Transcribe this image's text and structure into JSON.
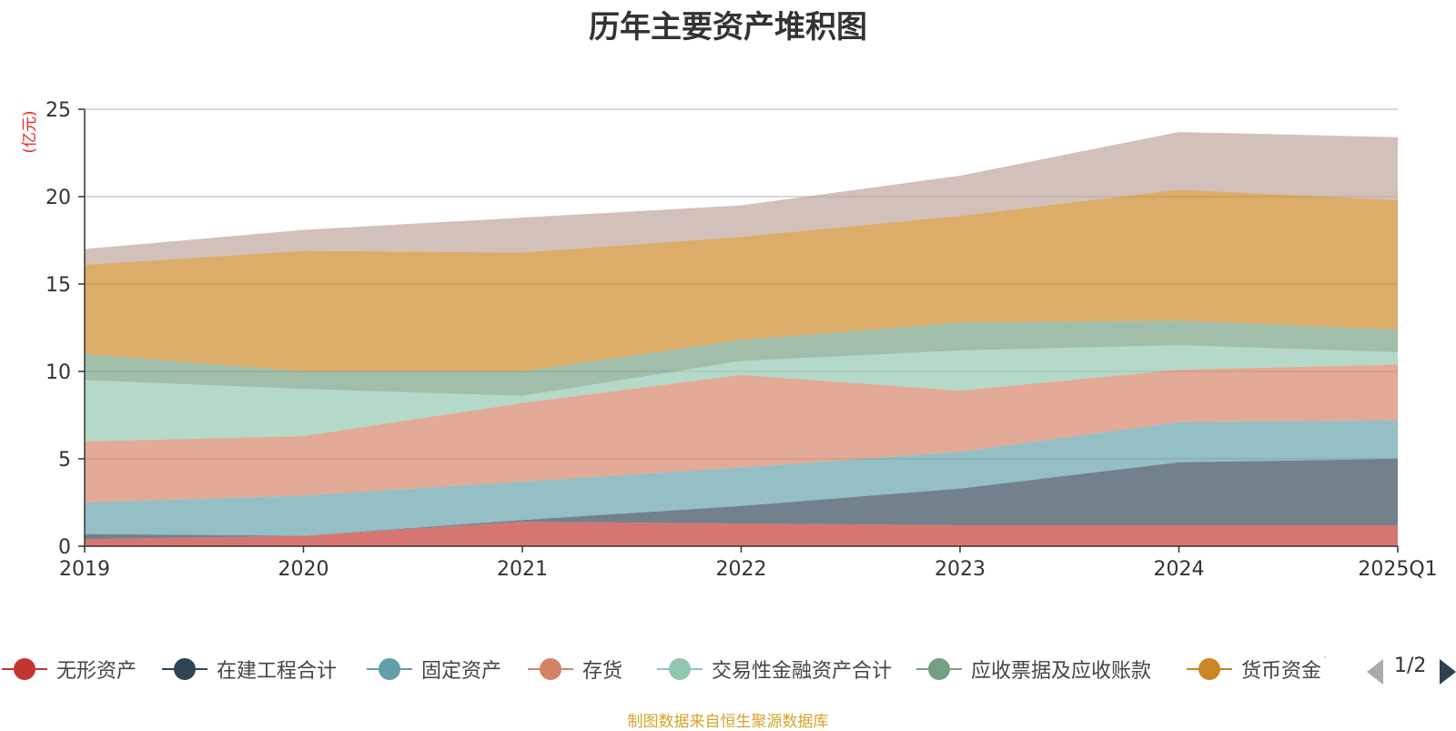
{
  "chart_data": {
    "type": "area",
    "stacked": true,
    "title": "历年主要资产堆积图",
    "ylabel": "(亿元)",
    "xlabel": "",
    "categories": [
      "2019",
      "2020",
      "2021",
      "2022",
      "2023",
      "2024",
      "2025Q1"
    ],
    "yticks": [
      0,
      5,
      10,
      15,
      20,
      25
    ],
    "ylim": [
      0,
      25
    ],
    "grid": true,
    "legend_position": "bottom",
    "series": [
      {
        "name": "无形资产",
        "color": "#c23531",
        "values": [
          0.4,
          0.6,
          1.4,
          1.3,
          1.2,
          1.2,
          1.2
        ]
      },
      {
        "name": "在建工程合计",
        "color": "#2f4554",
        "values": [
          0.3,
          0.0,
          0.1,
          1.0,
          2.1,
          3.6,
          3.8
        ]
      },
      {
        "name": "固定资产",
        "color": "#61a0a8",
        "values": [
          1.8,
          2.3,
          2.2,
          2.2,
          2.1,
          2.3,
          2.2
        ]
      },
      {
        "name": "存货",
        "color": "#d48265",
        "values": [
          3.5,
          3.4,
          4.5,
          5.3,
          3.5,
          3.0,
          3.2
        ]
      },
      {
        "name": "交易性金融资产合计",
        "color": "#91c7ae",
        "values": [
          3.5,
          2.7,
          0.4,
          0.8,
          2.3,
          1.4,
          0.7
        ]
      },
      {
        "name": "应收票据及应收账款",
        "color": "#749f83",
        "values": [
          1.5,
          1.0,
          1.4,
          1.2,
          1.6,
          1.4,
          1.3
        ]
      },
      {
        "name": "货币资金",
        "color": "#ca8622",
        "values": [
          5.1,
          6.9,
          6.8,
          5.9,
          6.1,
          7.5,
          7.4
        ]
      },
      {
        "name": "",
        "color": "#bda29a",
        "values": [
          0.9,
          1.2,
          2.0,
          1.8,
          2.3,
          3.3,
          3.6
        ]
      }
    ]
  },
  "legend": {
    "items": [
      {
        "label": "无形资产",
        "color": "#c23531"
      },
      {
        "label": "在建工程合计",
        "color": "#2f4554"
      },
      {
        "label": "固定资产",
        "color": "#61a0a8"
      },
      {
        "label": "存货",
        "color": "#d48265"
      },
      {
        "label": "交易性金融资产合计",
        "color": "#91c7ae"
      },
      {
        "label": "应收票据及应收账款",
        "color": "#749f83"
      },
      {
        "label": "货币资金",
        "color": "#ca8622"
      }
    ],
    "more_marker": "·",
    "page_indicator": "1/2",
    "prev_icon": "triangle-left-icon",
    "next_icon": "triangle-right-icon"
  },
  "source_note": "制图数据来自恒生聚源数据库"
}
